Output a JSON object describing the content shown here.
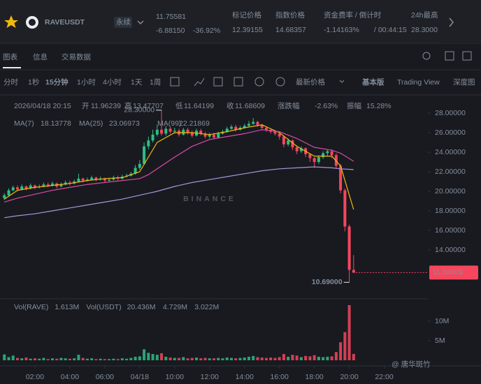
{
  "header": {
    "symbol": "RAVEUSDT",
    "contract": "永续",
    "price": "11.75581",
    "change": "-6.88150",
    "change_pct": "-36.92%",
    "stats": [
      {
        "label": "标记价格",
        "value": "12.39155"
      },
      {
        "label": "指数价格",
        "value": "14.68357"
      },
      {
        "label": "资金费率 / 倒计时",
        "value": "-1.14163%",
        "extra": "/ 00:44:15"
      },
      {
        "label": "24h最高",
        "value": "28.3000"
      }
    ]
  },
  "tabs": [
    "图表",
    "信息",
    "交易数据"
  ],
  "intervals": [
    "分时",
    "1秒",
    "15分钟",
    "1小时",
    "4小时",
    "1天",
    "1周"
  ],
  "price_type": "最新价格",
  "views": [
    "基本版",
    "Trading View",
    "深度图"
  ],
  "ohlc_bar": {
    "time": "2026/04/18 20:15",
    "items": [
      {
        "label": "开",
        "value": "11.96239"
      },
      {
        "label": "高",
        "value": "13.47707"
      },
      {
        "label": "低",
        "value": "11.64199"
      },
      {
        "label": "收",
        "value": "11.68609"
      },
      {
        "label": "涨跌幅",
        "value": "-2.63%"
      },
      {
        "label": "振幅",
        "value": "15.28%"
      }
    ]
  },
  "chart_data": {
    "type": "candlestick",
    "up_color": "#2ebd85",
    "down_color": "#f6465d",
    "xlim": [
      0,
      24.5
    ],
    "ylim": [
      9,
      29
    ],
    "xticks": [
      {
        "value": 2,
        "label": "02:00"
      },
      {
        "value": 4,
        "label": "04:00"
      },
      {
        "value": 6,
        "label": "06:00"
      },
      {
        "value": 8,
        "label": "04/18"
      },
      {
        "value": 10,
        "label": "10:00"
      },
      {
        "value": 12,
        "label": "12:00"
      },
      {
        "value": 14,
        "label": "14:00"
      },
      {
        "value": 16,
        "label": "16:00"
      },
      {
        "value": 18,
        "label": "18:00"
      },
      {
        "value": 20,
        "label": "20:00"
      },
      {
        "value": 22,
        "label": "22:00"
      }
    ],
    "yticks": [
      {
        "value": 14,
        "label": "14.00000"
      },
      {
        "value": 16,
        "label": "16.00000"
      },
      {
        "value": 18,
        "label": "18.00000"
      },
      {
        "value": 20,
        "label": "20.00000"
      },
      {
        "value": 22,
        "label": "22.00000"
      },
      {
        "value": 24,
        "label": "24.00000"
      },
      {
        "value": 26,
        "label": "26.00000"
      },
      {
        "value": 28,
        "label": "28.00000"
      }
    ],
    "high_label": "28.30000",
    "low_label": "10.69000",
    "last_label": "11.68609",
    "watermark": "BINANCE",
    "candles": [
      [
        0.25,
        19.3,
        19.8,
        19.1,
        19.6
      ],
      [
        0.5,
        19.6,
        20.3,
        19.5,
        20.1
      ],
      [
        0.75,
        20.1,
        20.6,
        20.0,
        20.4
      ],
      [
        1.0,
        20.4,
        20.6,
        20.0,
        20.2
      ],
      [
        1.25,
        20.2,
        20.7,
        20.1,
        20.5
      ],
      [
        1.5,
        20.5,
        20.6,
        20.1,
        20.3
      ],
      [
        1.75,
        20.3,
        20.8,
        20.2,
        20.6
      ],
      [
        2.0,
        20.6,
        20.7,
        20.2,
        20.4
      ],
      [
        2.25,
        20.4,
        20.7,
        20.3,
        20.5
      ],
      [
        2.5,
        20.5,
        20.9,
        20.4,
        20.7
      ],
      [
        2.75,
        20.7,
        20.9,
        20.4,
        20.6
      ],
      [
        3.0,
        20.6,
        21.0,
        20.5,
        20.8
      ],
      [
        3.25,
        20.8,
        20.9,
        20.3,
        20.5
      ],
      [
        3.5,
        20.5,
        20.9,
        20.4,
        20.7
      ],
      [
        3.75,
        20.7,
        21.1,
        20.6,
        20.9
      ],
      [
        4.0,
        20.9,
        21.1,
        20.6,
        20.8
      ],
      [
        4.25,
        20.8,
        21.2,
        20.7,
        21.0
      ],
      [
        4.5,
        21.0,
        21.8,
        20.9,
        21.3
      ],
      [
        4.75,
        21.3,
        21.4,
        20.9,
        21.1
      ],
      [
        5.0,
        21.1,
        21.4,
        21.0,
        21.2
      ],
      [
        5.25,
        21.2,
        21.6,
        21.1,
        21.4
      ],
      [
        5.5,
        21.4,
        21.5,
        21.0,
        21.2
      ],
      [
        5.75,
        21.2,
        21.5,
        21.1,
        21.3
      ],
      [
        6.0,
        21.3,
        21.4,
        20.9,
        21.1
      ],
      [
        6.25,
        21.1,
        21.4,
        21.0,
        21.2
      ],
      [
        6.5,
        21.2,
        21.6,
        21.1,
        21.4
      ],
      [
        6.75,
        21.4,
        21.6,
        21.1,
        21.3
      ],
      [
        7.0,
        21.3,
        21.7,
        21.2,
        21.5
      ],
      [
        7.25,
        21.5,
        21.8,
        21.4,
        21.6
      ],
      [
        7.5,
        21.6,
        22.0,
        21.5,
        21.8
      ],
      [
        7.75,
        21.8,
        22.7,
        21.7,
        22.4
      ],
      [
        8.0,
        22.4,
        23.2,
        22.2,
        22.8
      ],
      [
        8.25,
        22.8,
        25.0,
        22.7,
        24.6
      ],
      [
        8.5,
        24.6,
        25.6,
        24.3,
        25.2
      ],
      [
        8.75,
        25.2,
        26.3,
        25.0,
        25.8
      ],
      [
        9.0,
        25.8,
        26.8,
        25.6,
        26.3
      ],
      [
        9.25,
        26.3,
        28.3,
        25.7,
        25.9
      ],
      [
        9.5,
        25.9,
        26.7,
        25.7,
        26.4
      ],
      [
        9.75,
        26.4,
        26.6,
        25.9,
        26.1
      ],
      [
        10.0,
        26.1,
        26.5,
        25.9,
        26.2
      ],
      [
        10.25,
        26.2,
        26.4,
        25.6,
        25.8
      ],
      [
        10.5,
        25.8,
        26.5,
        25.7,
        26.3
      ],
      [
        10.75,
        26.3,
        26.5,
        25.8,
        26.0
      ],
      [
        11.0,
        26.0,
        26.2,
        25.5,
        25.7
      ],
      [
        11.25,
        25.7,
        26.4,
        25.6,
        26.2
      ],
      [
        11.5,
        26.2,
        26.4,
        25.7,
        25.9
      ],
      [
        11.75,
        25.9,
        26.1,
        25.4,
        25.6
      ],
      [
        12.0,
        25.6,
        26.0,
        25.4,
        25.8
      ],
      [
        12.25,
        25.8,
        26.0,
        25.3,
        25.5
      ],
      [
        12.5,
        25.5,
        26.1,
        25.4,
        25.9
      ],
      [
        12.75,
        25.9,
        26.3,
        25.8,
        26.1
      ],
      [
        13.0,
        26.1,
        26.6,
        26.0,
        26.4
      ],
      [
        13.25,
        26.4,
        26.8,
        26.3,
        26.6
      ],
      [
        13.5,
        26.6,
        26.8,
        26.1,
        26.3
      ],
      [
        13.75,
        26.3,
        26.7,
        26.2,
        26.5
      ],
      [
        14.0,
        26.5,
        26.9,
        26.4,
        26.7
      ],
      [
        14.25,
        26.7,
        27.2,
        26.6,
        26.9
      ],
      [
        14.5,
        26.9,
        27.5,
        26.8,
        27.1
      ],
      [
        14.75,
        27.1,
        27.2,
        26.6,
        26.8
      ],
      [
        15.0,
        26.8,
        26.9,
        26.3,
        26.5
      ],
      [
        15.25,
        26.5,
        26.6,
        26.1,
        26.3
      ],
      [
        15.5,
        26.3,
        26.4,
        25.9,
        26.1
      ],
      [
        15.75,
        26.1,
        26.2,
        25.7,
        25.9
      ],
      [
        16.0,
        25.9,
        26.0,
        25.3,
        25.6
      ],
      [
        16.25,
        25.6,
        25.7,
        24.5,
        24.8
      ],
      [
        16.5,
        24.8,
        25.4,
        24.6,
        25.2
      ],
      [
        16.75,
        25.2,
        25.3,
        24.2,
        24.5
      ],
      [
        17.0,
        24.5,
        24.7,
        23.8,
        24.1
      ],
      [
        17.25,
        24.1,
        24.6,
        23.9,
        24.4
      ],
      [
        17.5,
        24.4,
        24.5,
        23.5,
        23.8
      ],
      [
        17.75,
        23.8,
        23.9,
        23.0,
        23.4
      ],
      [
        18.0,
        23.4,
        23.5,
        22.4,
        23.0
      ],
      [
        18.25,
        23.0,
        23.7,
        22.8,
        23.5
      ],
      [
        18.5,
        23.5,
        24.1,
        23.3,
        23.9
      ],
      [
        18.75,
        23.9,
        24.3,
        23.6,
        24.1
      ],
      [
        19.0,
        24.1,
        24.3,
        23.4,
        23.7
      ],
      [
        19.25,
        23.7,
        23.9,
        22.3,
        22.6
      ],
      [
        19.5,
        22.6,
        22.8,
        19.8,
        20.1
      ],
      [
        19.75,
        20.1,
        20.3,
        15.9,
        16.4
      ],
      [
        20.0,
        16.4,
        16.6,
        10.69,
        11.96239
      ],
      [
        20.25,
        11.96239,
        13.47707,
        11.64199,
        11.68609
      ]
    ],
    "ma": [
      {
        "name": "MA(7)",
        "color": "#f0b90b",
        "label": "18.13778",
        "x": [
          0.25,
          1,
          2,
          3,
          4,
          5,
          6,
          7,
          8,
          8.5,
          9,
          10,
          11,
          12,
          13,
          14,
          15,
          16,
          17,
          18,
          19,
          19.5,
          20.25
        ],
        "values": [
          19.2,
          20.1,
          20.4,
          20.6,
          20.8,
          21.1,
          21.3,
          21.4,
          22.0,
          23.5,
          25.0,
          26.0,
          26.0,
          25.8,
          26.1,
          26.5,
          26.8,
          26.0,
          24.6,
          23.6,
          23.6,
          22.6,
          18.13778
        ]
      },
      {
        "name": "MA(25)",
        "color": "#d94ca6",
        "label": "23.06973",
        "x": [
          0.25,
          1,
          2,
          3,
          4,
          5,
          6,
          7,
          8,
          8.5,
          9,
          10,
          11,
          12,
          13,
          14,
          15,
          16,
          17,
          18,
          19,
          19.5,
          20.25
        ],
        "values": [
          18.9,
          19.3,
          19.7,
          20.1,
          20.4,
          20.7,
          20.9,
          21.1,
          21.3,
          21.7,
          22.3,
          23.5,
          24.6,
          25.3,
          25.6,
          25.9,
          26.3,
          26.1,
          25.4,
          24.5,
          24.2,
          23.9,
          23.06973
        ]
      },
      {
        "name": "MA(99)",
        "color": "#a796d8",
        "label": "22.21869",
        "x": [
          0.25,
          1,
          2,
          3,
          4,
          5,
          6,
          7,
          8,
          8.5,
          9,
          10,
          11,
          12,
          13,
          14,
          15,
          16,
          17,
          18,
          19,
          19.5,
          20.25
        ],
        "values": [
          17.3,
          17.5,
          17.7,
          18.0,
          18.3,
          18.6,
          18.9,
          19.2,
          19.6,
          19.8,
          20.0,
          20.5,
          20.9,
          21.2,
          21.5,
          21.8,
          22.1,
          22.3,
          22.4,
          22.5,
          22.4,
          22.3,
          22.21869
        ]
      }
    ],
    "volume": {
      "ylim": [
        0,
        15
      ],
      "yticks": [
        {
          "value": 5,
          "label": "5M"
        },
        {
          "value": 10,
          "label": "10M"
        }
      ],
      "legend": [
        {
          "name": "Vol(RAVE)",
          "value": "1.613M",
          "color": "#eaecef"
        },
        {
          "name": "Vol(USDT)",
          "value": "20.436M",
          "color": "#eaecef"
        },
        {
          "value": "4.729M",
          "color": "#2ebd85"
        },
        {
          "value": "3.022M",
          "color": "#d94ca6"
        }
      ],
      "values": [
        1.5,
        0.8,
        1.2,
        0.6,
        0.5,
        0.7,
        0.4,
        0.5,
        0.4,
        0.6,
        0.3,
        0.5,
        0.4,
        0.6,
        0.5,
        0.4,
        0.5,
        1.4,
        0.6,
        0.4,
        0.5,
        0.3,
        0.4,
        0.3,
        0.3,
        0.4,
        0.3,
        0.5,
        0.4,
        0.6,
        0.9,
        1.0,
        2.8,
        1.9,
        1.6,
        1.4,
        1.8,
        0.9,
        0.7,
        0.6,
        0.6,
        0.8,
        0.5,
        0.6,
        0.7,
        0.5,
        0.6,
        0.5,
        0.5,
        0.6,
        0.5,
        0.7,
        0.6,
        0.5,
        0.6,
        0.7,
        0.9,
        1.1,
        0.8,
        0.7,
        0.6,
        0.7,
        0.6,
        0.8,
        1.6,
        0.9,
        1.4,
        1.2,
        0.8,
        1.1,
        1.0,
        1.3,
        0.9,
        0.8,
        0.9,
        1.0,
        2.1,
        4.6,
        7.2,
        14.1,
        1.613
      ]
    }
  },
  "watermark": "@ 唐华斑竹"
}
